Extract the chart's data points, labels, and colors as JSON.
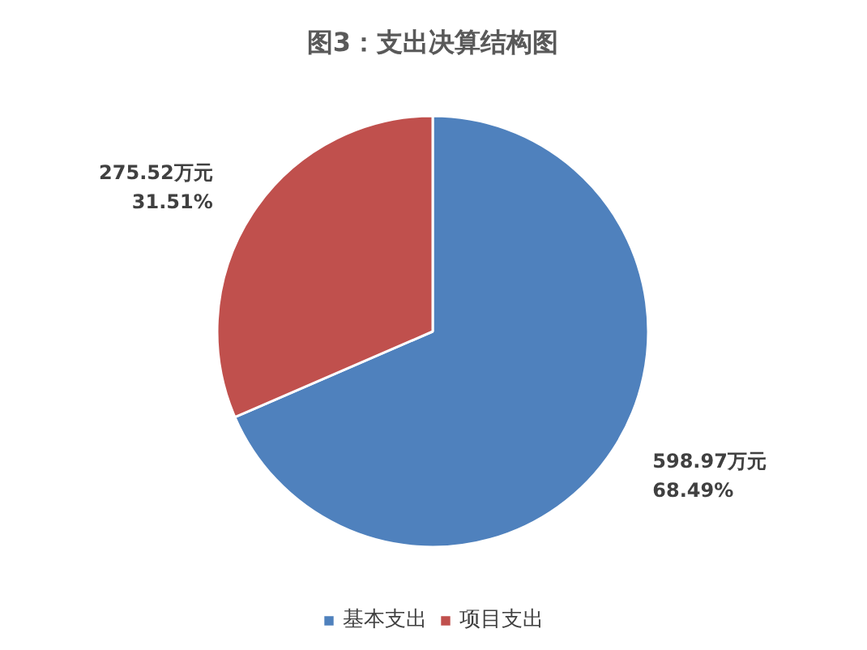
{
  "chart_data": {
    "type": "pie",
    "title": "图3：支出决算结构图",
    "categories": [
      "基本支出",
      "项目支出"
    ],
    "values": [
      598.97,
      275.52
    ],
    "colors": [
      "#4f81bd",
      "#c0504d"
    ],
    "value_labels": [
      "598.97万元\n68.49%",
      "275.52万元\n31.51%"
    ],
    "legend": "bottom"
  }
}
